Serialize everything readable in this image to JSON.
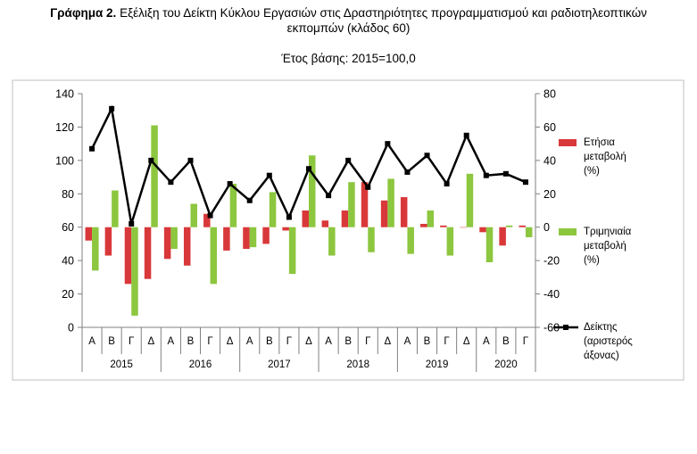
{
  "chart_data": {
    "type": "bar",
    "title_bold": "Γράφημα 2.",
    "title_line1": "Εξέλιξη του Δείκτη Κύκλου Εργασιών στις Δραστηριότητες προγραμματισμού και ραδιοτηλεοπτικών",
    "title_line2": "εκπομπών (κλάδος 60)",
    "subtitle": "Έτος βάσης: 2015=100,0",
    "quarters": [
      "Α",
      "Β",
      "Γ",
      "Δ",
      "Α",
      "Β",
      "Γ",
      "Δ",
      "Α",
      "Β",
      "Γ",
      "Δ",
      "Α",
      "Β",
      "Γ",
      "Δ",
      "Α",
      "Β",
      "Γ",
      "Δ",
      "Α",
      "Β",
      "Γ"
    ],
    "years": [
      {
        "label": "2015",
        "count": 4
      },
      {
        "label": "2016",
        "count": 4
      },
      {
        "label": "2017",
        "count": 4
      },
      {
        "label": "2018",
        "count": 4
      },
      {
        "label": "2019",
        "count": 4
      },
      {
        "label": "2020",
        "count": 3
      }
    ],
    "left_axis": {
      "min": 0,
      "max": 140,
      "step": 20,
      "ticks": [
        "0",
        "20",
        "40",
        "60",
        "80",
        "100",
        "120",
        "140"
      ]
    },
    "right_axis": {
      "min": -60,
      "max": 80,
      "step": 20,
      "ticks": [
        "-60",
        "-40",
        "-20",
        "0",
        "20",
        "40",
        "60",
        "80"
      ]
    },
    "series": [
      {
        "name": "Ετήσια μεταβολή (%)",
        "name_lines": [
          "Ετήσια",
          "μεταβολή",
          "(%)"
        ],
        "kind": "bar",
        "axis": "right",
        "color": "#d9383a",
        "values": [
          -8,
          -17,
          -34,
          -31,
          -19,
          -23,
          8,
          -14,
          -13,
          -10,
          -2,
          10,
          4,
          10,
          27,
          16,
          18,
          2,
          1,
          0,
          -3,
          -11,
          1
        ]
      },
      {
        "name": "Τριμηνιαία μεταβολή (%)",
        "name_lines": [
          "Τριμηνιαία",
          "μεταβολή",
          "(%)"
        ],
        "kind": "bar",
        "axis": "right",
        "color": "#8dc63f",
        "values": [
          -26,
          22,
          -53,
          61,
          -13,
          14,
          -34,
          26,
          -12,
          21,
          -28,
          43,
          -17,
          27,
          -15,
          29,
          -16,
          10,
          -17,
          32,
          -21,
          1,
          -6
        ]
      },
      {
        "name": "Δείκτης (αριστερός άξονας)",
        "name_lines": [
          "Δείκτης",
          "(αριστερός",
          "άξονας)"
        ],
        "kind": "line",
        "axis": "left",
        "color": "#000000",
        "values": [
          107,
          131,
          62,
          100,
          87,
          100,
          67,
          86,
          76,
          91,
          66,
          95,
          79,
          100,
          84,
          110,
          93,
          103,
          86,
          115,
          91,
          92,
          87
        ]
      }
    ],
    "grid": false,
    "legend_position": "right"
  }
}
